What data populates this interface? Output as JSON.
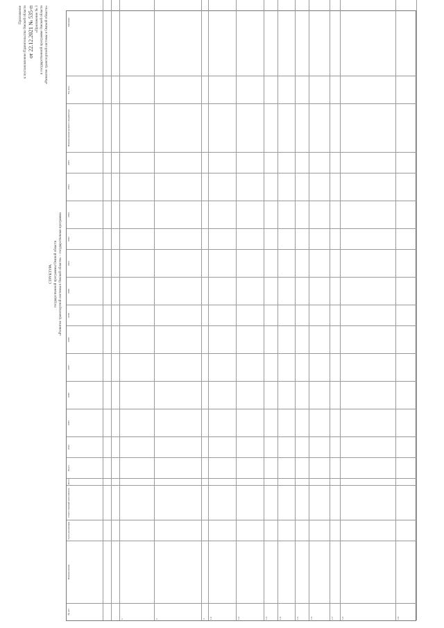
{
  "appendix": {
    "line1": "Приложение",
    "line2": "к постановлению Правительства Омской области",
    "date_line": "от 22.12.2021 № 535-п",
    "line3": "«Приложение № 3",
    "line4": "к государственной программе Омской области",
    "line5": "«Развитие транспортной системы в Омской области»"
  },
  "title": {
    "line1": "СТРУКТУРА",
    "line2": "государственной программы Омской области",
    "line3": "«Развитие транспортной системы в Омской области» – государственная программа"
  },
  "table": {
    "headers": [
      "№ п/п",
      "Наименование",
      "Срок реализации",
      "Ответственный исполнитель",
      "Источник",
      "Всего",
      "2014",
      "2015",
      "2016",
      "2017",
      "2018",
      "2019",
      "2020",
      "2021",
      "2022",
      "2023",
      "2024",
      "2025",
      "Наименование целевого индикатора",
      "Ед. изм.",
      "Значение"
    ],
    "row_numbers": [
      "1",
      "2",
      "3",
      "1.1",
      "1.2",
      "1.3",
      "1.4",
      "1.5",
      "1.6",
      "1.7",
      "1.8",
      "1.9"
    ]
  }
}
